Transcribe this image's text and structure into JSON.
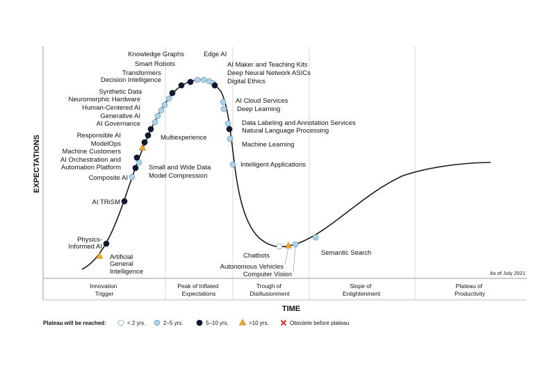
{
  "axes": {
    "y_title": "EXPECTATIONS",
    "x_title": "TIME"
  },
  "note": "As of July 2021",
  "colors": {
    "lt2": "#ffffff",
    "y2to5": "#a9d4ec",
    "y5to10": "#0f1a2e",
    "gt10": "#f2a92b",
    "obsolete": "#d32f2f",
    "curve": "#1a1a1a",
    "grid": "#d9d9d9"
  },
  "phases": [
    {
      "lines": [
        "Innovation",
        "Trigger"
      ]
    },
    {
      "lines": [
        "Peak of Inflated",
        "Expectations"
      ]
    },
    {
      "lines": [
        "Trough of",
        "Disillusionment"
      ]
    },
    {
      "lines": [
        "Slope of",
        "Enlightenment"
      ]
    },
    {
      "lines": [
        "Plateau of",
        "Productivity"
      ]
    }
  ],
  "legend": {
    "title": "Plateau will be reached:",
    "items": [
      {
        "kind": "lt2",
        "label": "< 2 yrs."
      },
      {
        "kind": "y2to5",
        "label": "2–5 yrs."
      },
      {
        "kind": "y5to10",
        "label": "5–10 yrs."
      },
      {
        "kind": "gt10",
        "label": ">10 yrs."
      },
      {
        "kind": "obsolete",
        "label": "Obsolete before plateau"
      }
    ]
  },
  "technologies": [
    {
      "label": "Artificial General Intelligence",
      "kind": "gt10"
    },
    {
      "label": "Physics-Informed AI",
      "kind": "y5to10"
    },
    {
      "label": "AI TRiSM",
      "kind": "y5to10"
    },
    {
      "label": "Composite AI",
      "kind": "y2to5"
    },
    {
      "label": "Small and Wide Data",
      "kind": "y5to10"
    },
    {
      "label": "Model Compression",
      "kind": "y2to5"
    },
    {
      "label": "AI Orchestration and Automation Platform",
      "kind": "y5to10"
    },
    {
      "label": "Machine Customers",
      "kind": "gt10"
    },
    {
      "label": "ModelOps",
      "kind": "y5to10"
    },
    {
      "label": "Responsible AI",
      "kind": "y5to10"
    },
    {
      "label": "Multiexperience",
      "kind": "y5to10"
    },
    {
      "label": "AI Governance",
      "kind": "y2to5"
    },
    {
      "label": "Generative AI",
      "kind": "y2to5"
    },
    {
      "label": "Human-Centered AI",
      "kind": "y2to5"
    },
    {
      "label": "Neuromorphic Hardware",
      "kind": "y2to5"
    },
    {
      "label": "Synthetic Data",
      "kind": "y2to5"
    },
    {
      "label": "Decision Intelligence",
      "kind": "y5to10"
    },
    {
      "label": "Transformers",
      "kind": "y5to10"
    },
    {
      "label": "Smart Robots",
      "kind": "y5to10"
    },
    {
      "label": "Knowledge Graphs",
      "kind": "y2to5"
    },
    {
      "label": "Edge AI",
      "kind": "y2to5"
    },
    {
      "label": "AI Maker and Teaching Kits",
      "kind": "y2to5"
    },
    {
      "label": "Deep Neural Network ASICs",
      "kind": "y2to5"
    },
    {
      "label": "Digital Ethics",
      "kind": "y5to10"
    },
    {
      "label": "AI Cloud Services",
      "kind": "y2to5"
    },
    {
      "label": "Deep Learning",
      "kind": "y2to5"
    },
    {
      "label": "Data Labeling and Annotation Services",
      "kind": "y2to5"
    },
    {
      "label": "Natural Language Processing",
      "kind": "y5to10"
    },
    {
      "label": "Machine Learning",
      "kind": "y2to5"
    },
    {
      "label": "Intelligent Applications",
      "kind": "y2to5"
    },
    {
      "label": "Chatbots",
      "kind": "lt2"
    },
    {
      "label": "Autonomous Vehicles",
      "kind": "gt10"
    },
    {
      "label": "Computer Vision",
      "kind": "y2to5"
    },
    {
      "label": "Semantic Search",
      "kind": "y2to5"
    }
  ]
}
